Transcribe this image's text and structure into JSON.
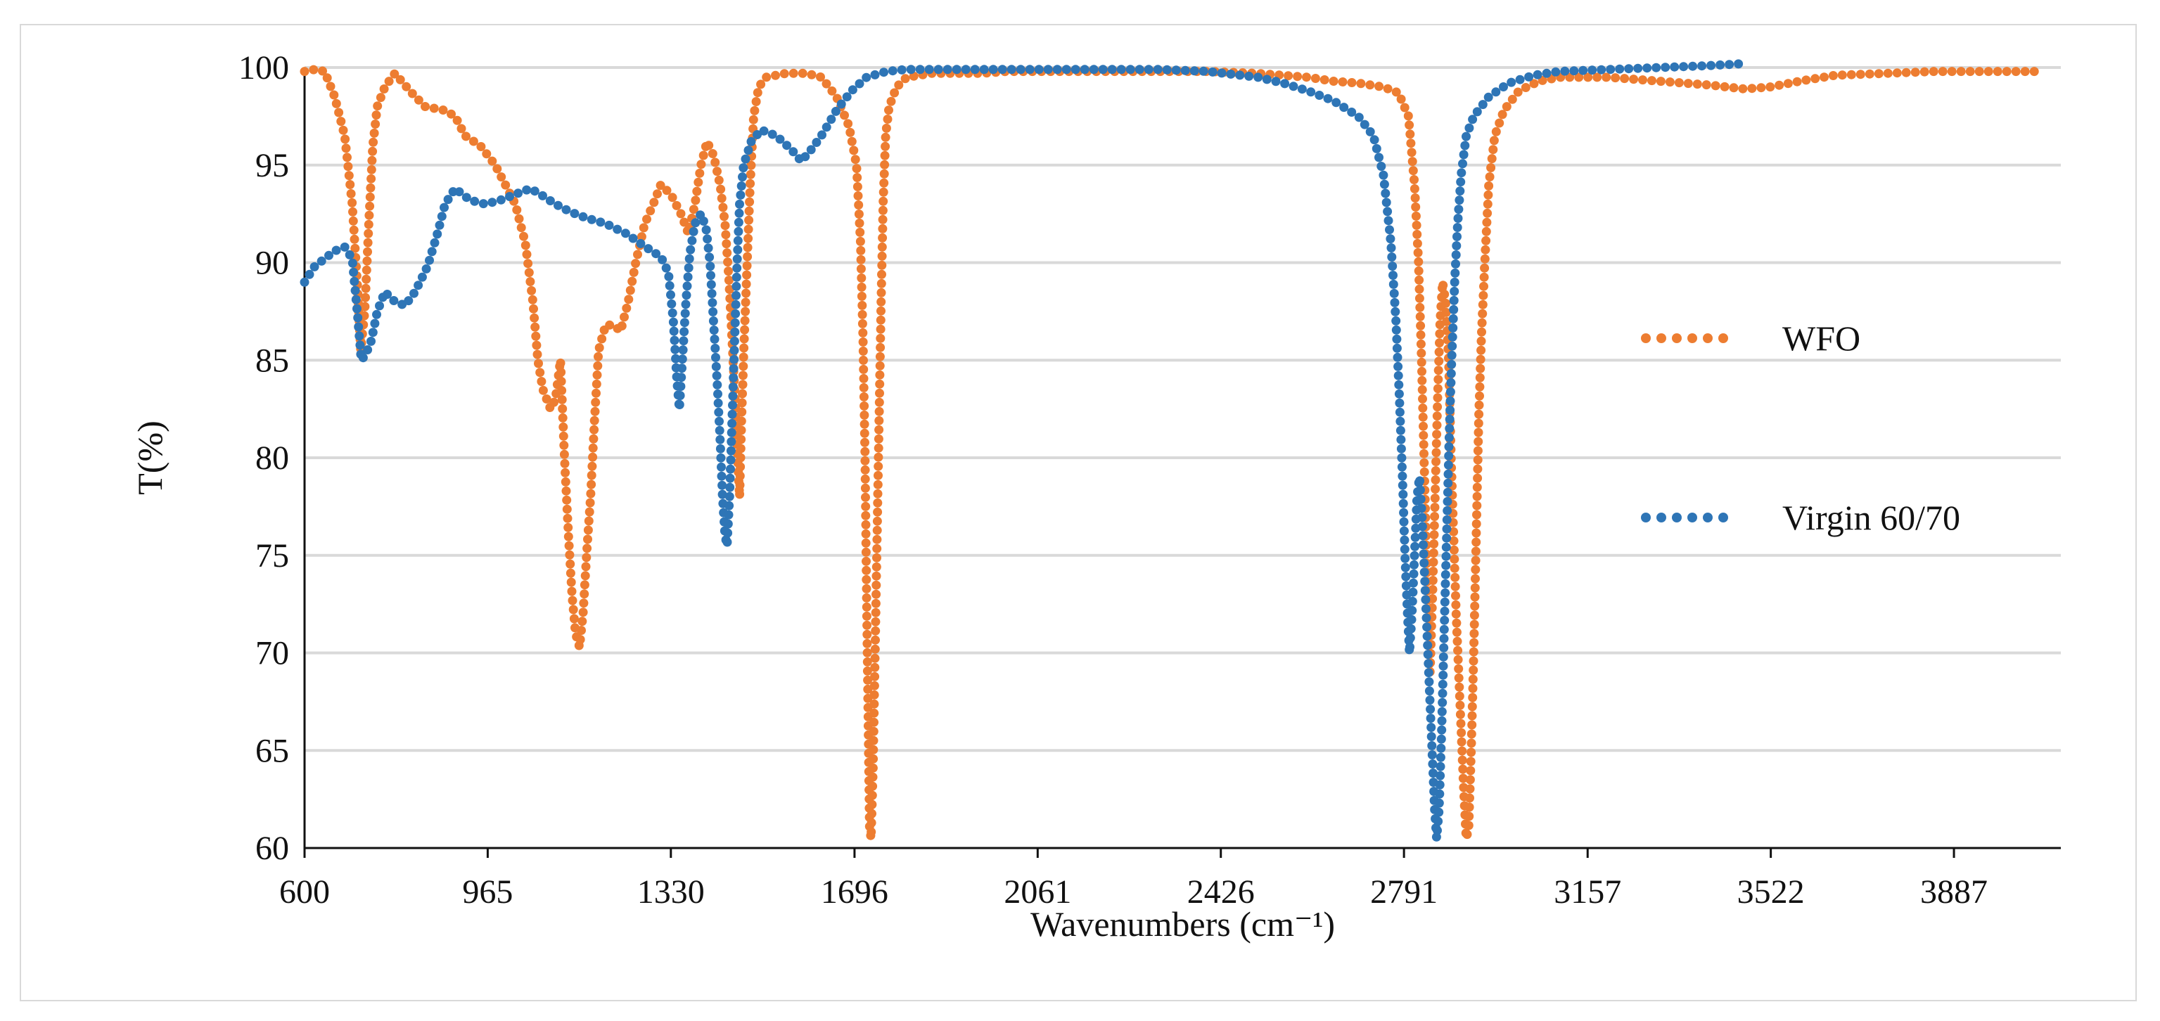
{
  "chart_data": {
    "type": "scatter",
    "xlabel": "Wavenumbers (cm⁻¹)",
    "ylabel": "T(%)",
    "xlim": [
      600,
      4100
    ],
    "ylim": [
      60,
      100
    ],
    "x_ticks": [
      "600",
      "965",
      "1330",
      "1696",
      "2061",
      "2426",
      "2791",
      "3157",
      "3522",
      "3887"
    ],
    "y_ticks": [
      "60",
      "65",
      "70",
      "75",
      "80",
      "85",
      "90",
      "95",
      "100"
    ],
    "grid": "horizontal",
    "legend_position": "right",
    "series": [
      {
        "name": "WFO",
        "color": "#ED7D31",
        "points": [
          [
            600,
            99.8
          ],
          [
            620,
            99.9
          ],
          [
            640,
            99.8
          ],
          [
            660,
            98.5
          ],
          [
            680,
            96.5
          ],
          [
            695,
            93
          ],
          [
            705,
            89
          ],
          [
            712,
            85.5
          ],
          [
            720,
            87.5
          ],
          [
            728,
            92
          ],
          [
            736,
            96
          ],
          [
            745,
            98
          ],
          [
            760,
            99
          ],
          [
            780,
            99.7
          ],
          [
            810,
            98.8
          ],
          [
            840,
            98
          ],
          [
            880,
            97.8
          ],
          [
            900,
            97.5
          ],
          [
            920,
            96.5
          ],
          [
            950,
            96
          ],
          [
            980,
            95
          ],
          [
            1000,
            94
          ],
          [
            1020,
            93
          ],
          [
            1040,
            91
          ],
          [
            1055,
            88
          ],
          [
            1065,
            85
          ],
          [
            1075,
            83.5
          ],
          [
            1090,
            82.5
          ],
          [
            1100,
            83
          ],
          [
            1110,
            85
          ],
          [
            1118,
            80
          ],
          [
            1126,
            76
          ],
          [
            1133,
            73
          ],
          [
            1140,
            71
          ],
          [
            1148,
            70.3
          ],
          [
            1155,
            72
          ],
          [
            1162,
            75
          ],
          [
            1170,
            78
          ],
          [
            1178,
            82
          ],
          [
            1186,
            85.5
          ],
          [
            1200,
            86.8
          ],
          [
            1215,
            86.8
          ],
          [
            1230,
            86.5
          ],
          [
            1245,
            88
          ],
          [
            1260,
            90
          ],
          [
            1278,
            92
          ],
          [
            1295,
            93
          ],
          [
            1310,
            94
          ],
          [
            1330,
            93.5
          ],
          [
            1350,
            92.5
          ],
          [
            1365,
            91.5
          ],
          [
            1378,
            93
          ],
          [
            1390,
            95
          ],
          [
            1402,
            96.2
          ],
          [
            1415,
            95.5
          ],
          [
            1428,
            94
          ],
          [
            1438,
            92
          ],
          [
            1446,
            89
          ],
          [
            1452,
            86
          ],
          [
            1458,
            83
          ],
          [
            1463,
            80
          ],
          [
            1467,
            78
          ],
          [
            1471,
            82
          ],
          [
            1476,
            86
          ],
          [
            1482,
            90
          ],
          [
            1488,
            94
          ],
          [
            1495,
            97.5
          ],
          [
            1505,
            99
          ],
          [
            1520,
            99.5
          ],
          [
            1560,
            99.7
          ],
          [
            1600,
            99.7
          ],
          [
            1630,
            99.5
          ],
          [
            1660,
            98.5
          ],
          [
            1685,
            97
          ],
          [
            1700,
            95
          ],
          [
            1708,
            91
          ],
          [
            1713,
            86
          ],
          [
            1717,
            80
          ],
          [
            1720,
            73
          ],
          [
            1723,
            67
          ],
          [
            1726,
            61
          ],
          [
            1729,
            60.5
          ],
          [
            1733,
            64
          ],
          [
            1737,
            70
          ],
          [
            1741,
            76
          ],
          [
            1745,
            82
          ],
          [
            1749,
            88
          ],
          [
            1753,
            93
          ],
          [
            1758,
            96.5
          ],
          [
            1765,
            98
          ],
          [
            1780,
            99
          ],
          [
            1800,
            99.5
          ],
          [
            1850,
            99.7
          ],
          [
            1900,
            99.7
          ],
          [
            1950,
            99.7
          ],
          [
            2000,
            99.8
          ],
          [
            2100,
            99.8
          ],
          [
            2200,
            99.8
          ],
          [
            2300,
            99.8
          ],
          [
            2400,
            99.8
          ],
          [
            2500,
            99.7
          ],
          [
            2550,
            99.6
          ],
          [
            2600,
            99.5
          ],
          [
            2650,
            99.3
          ],
          [
            2700,
            99.2
          ],
          [
            2750,
            99
          ],
          [
            2780,
            98.7
          ],
          [
            2800,
            97.5
          ],
          [
            2812,
            94
          ],
          [
            2820,
            90
          ],
          [
            2826,
            85
          ],
          [
            2831,
            80
          ],
          [
            2836,
            75
          ],
          [
            2840,
            70
          ],
          [
            2843,
            69
          ],
          [
            2848,
            73
          ],
          [
            2853,
            78
          ],
          [
            2858,
            83
          ],
          [
            2863,
            87
          ],
          [
            2868,
            89
          ],
          [
            2874,
            88
          ],
          [
            2880,
            85
          ],
          [
            2885,
            80
          ],
          [
            2890,
            76
          ],
          [
            2895,
            72
          ],
          [
            2900,
            69
          ],
          [
            2905,
            66
          ],
          [
            2910,
            63
          ],
          [
            2915,
            60.5
          ],
          [
            2920,
            61
          ],
          [
            2925,
            65
          ],
          [
            2930,
            70
          ],
          [
            2935,
            76
          ],
          [
            2940,
            82
          ],
          [
            2945,
            86
          ],
          [
            2952,
            90
          ],
          [
            2960,
            94
          ],
          [
            2972,
            96.5
          ],
          [
            2990,
            97.8
          ],
          [
            3020,
            98.8
          ],
          [
            3060,
            99.3
          ],
          [
            3100,
            99.5
          ],
          [
            3200,
            99.5
          ],
          [
            3300,
            99.3
          ],
          [
            3400,
            99.1
          ],
          [
            3470,
            98.9
          ],
          [
            3520,
            99
          ],
          [
            3580,
            99.3
          ],
          [
            3650,
            99.6
          ],
          [
            3750,
            99.7
          ],
          [
            3850,
            99.8
          ],
          [
            3950,
            99.8
          ],
          [
            4050,
            99.8
          ]
        ]
      },
      {
        "name": "Virgin 60/70",
        "color": "#2E75B6",
        "points": [
          [
            600,
            89
          ],
          [
            620,
            89.8
          ],
          [
            640,
            90.2
          ],
          [
            660,
            90.6
          ],
          [
            680,
            90.8
          ],
          [
            695,
            90.2
          ],
          [
            705,
            87.5
          ],
          [
            713,
            85
          ],
          [
            722,
            85.3
          ],
          [
            733,
            86
          ],
          [
            745,
            87.5
          ],
          [
            760,
            88.5
          ],
          [
            780,
            88
          ],
          [
            800,
            87.8
          ],
          [
            820,
            88.5
          ],
          [
            845,
            89.8
          ],
          [
            865,
            91.5
          ],
          [
            880,
            93
          ],
          [
            900,
            93.8
          ],
          [
            930,
            93.2
          ],
          [
            960,
            93
          ],
          [
            990,
            93.2
          ],
          [
            1020,
            93.5
          ],
          [
            1050,
            93.8
          ],
          [
            1070,
            93.5
          ],
          [
            1100,
            93
          ],
          [
            1130,
            92.6
          ],
          [
            1160,
            92.3
          ],
          [
            1200,
            92
          ],
          [
            1240,
            91.5
          ],
          [
            1280,
            90.8
          ],
          [
            1310,
            90.3
          ],
          [
            1325,
            89.5
          ],
          [
            1335,
            87
          ],
          [
            1342,
            84
          ],
          [
            1347,
            82.5
          ],
          [
            1353,
            85
          ],
          [
            1360,
            88
          ],
          [
            1368,
            90.5
          ],
          [
            1378,
            92
          ],
          [
            1390,
            92.5
          ],
          [
            1400,
            91.8
          ],
          [
            1408,
            90
          ],
          [
            1415,
            87
          ],
          [
            1422,
            84
          ],
          [
            1428,
            81
          ],
          [
            1433,
            78
          ],
          [
            1438,
            76
          ],
          [
            1442,
            75.5
          ],
          [
            1447,
            78
          ],
          [
            1452,
            82
          ],
          [
            1457,
            86
          ],
          [
            1462,
            90
          ],
          [
            1467,
            93
          ],
          [
            1475,
            95
          ],
          [
            1490,
            96.2
          ],
          [
            1510,
            96.8
          ],
          [
            1540,
            96.5
          ],
          [
            1570,
            95.8
          ],
          [
            1590,
            95.2
          ],
          [
            1610,
            95.8
          ],
          [
            1630,
            96.5
          ],
          [
            1660,
            97.8
          ],
          [
            1690,
            98.8
          ],
          [
            1720,
            99.5
          ],
          [
            1760,
            99.8
          ],
          [
            1800,
            99.9
          ],
          [
            1900,
            99.9
          ],
          [
            2000,
            99.9
          ],
          [
            2100,
            99.9
          ],
          [
            2200,
            99.9
          ],
          [
            2300,
            99.9
          ],
          [
            2400,
            99.8
          ],
          [
            2500,
            99.5
          ],
          [
            2550,
            99.2
          ],
          [
            2600,
            98.8
          ],
          [
            2650,
            98.3
          ],
          [
            2700,
            97.5
          ],
          [
            2730,
            96.5
          ],
          [
            2750,
            94.5
          ],
          [
            2765,
            91
          ],
          [
            2775,
            87
          ],
          [
            2782,
            83
          ],
          [
            2788,
            79
          ],
          [
            2793,
            75
          ],
          [
            2798,
            72
          ],
          [
            2802,
            70
          ],
          [
            2807,
            72
          ],
          [
            2812,
            75
          ],
          [
            2817,
            78
          ],
          [
            2822,
            79
          ],
          [
            2827,
            77
          ],
          [
            2832,
            74
          ],
          [
            2837,
            71
          ],
          [
            2842,
            68
          ],
          [
            2847,
            65
          ],
          [
            2852,
            62
          ],
          [
            2856,
            60.5
          ],
          [
            2861,
            62
          ],
          [
            2866,
            66
          ],
          [
            2871,
            71
          ],
          [
            2876,
            76
          ],
          [
            2881,
            81
          ],
          [
            2886,
            85
          ],
          [
            2892,
            89
          ],
          [
            2898,
            92
          ],
          [
            2905,
            94.5
          ],
          [
            2915,
            96.5
          ],
          [
            2930,
            97.5
          ],
          [
            2960,
            98.5
          ],
          [
            3000,
            99.2
          ],
          [
            3050,
            99.6
          ],
          [
            3100,
            99.8
          ],
          [
            3200,
            99.9
          ],
          [
            3300,
            100
          ],
          [
            3400,
            100.1
          ],
          [
            3470,
            100.2
          ]
        ]
      }
    ]
  }
}
